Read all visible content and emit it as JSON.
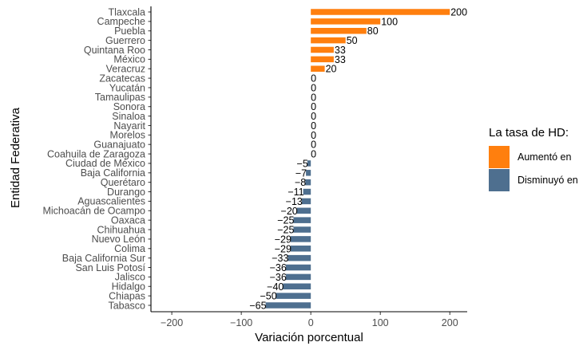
{
  "chart_data": {
    "type": "bar",
    "orientation": "horizontal",
    "xlabel": "Variación porcentual",
    "ylabel": "Entidad Federativa",
    "xlim": [
      -230,
      225
    ],
    "xticks": [
      -200,
      -100,
      0,
      100,
      200
    ],
    "xtick_labels": [
      "−200",
      "−100",
      "0",
      "100",
      "200"
    ],
    "grid": false,
    "legend_position": "right",
    "legend": {
      "title": "La tasa de HD:",
      "entries": [
        {
          "label": "Aumentó en",
          "color": "#ff7f0e"
        },
        {
          "label": "Disminuyó en",
          "color": "#4e6f8f"
        }
      ]
    },
    "categories": [
      "Tlaxcala",
      "Campeche",
      "Puebla",
      "Guerrero",
      "Quintana Roo",
      "México",
      "Veracruz",
      "Zacatecas",
      "Yucatán",
      "Tamaulipas",
      "Sonora",
      "Sinaloa",
      "Nayarit",
      "Morelos",
      "Guanajuato",
      "Coahuila de Zaragoza",
      "Ciudad de México",
      "Baja California",
      "Querétaro",
      "Durango",
      "Aguascalientes",
      "Michoacán de Ocampo",
      "Oaxaca",
      "Chihuahua",
      "Nuevo León",
      "Colima",
      "Baja California Sur",
      "San Luis Potosí",
      "Jalisco",
      "Hidalgo",
      "Chiapas",
      "Tabasco"
    ],
    "values": [
      200,
      100,
      80,
      50,
      33,
      33,
      20,
      0,
      0,
      0,
      0,
      0,
      0,
      0,
      0,
      0,
      -5,
      -7,
      -8,
      -11,
      -13,
      -20,
      -25,
      -25,
      -29,
      -29,
      -33,
      -36,
      -36,
      -40,
      -50,
      -65
    ],
    "value_labels": [
      "200",
      "100",
      "80",
      "50",
      "33",
      "33",
      "20",
      "0",
      "0",
      "0",
      "0",
      "0",
      "0",
      "0",
      "0",
      "0",
      "−5",
      "−7",
      "−8",
      "−11",
      "−13",
      "−20",
      "−25",
      "−25",
      "−29",
      "−29",
      "−33",
      "−36",
      "−36",
      "−40",
      "−50",
      "−65"
    ]
  }
}
